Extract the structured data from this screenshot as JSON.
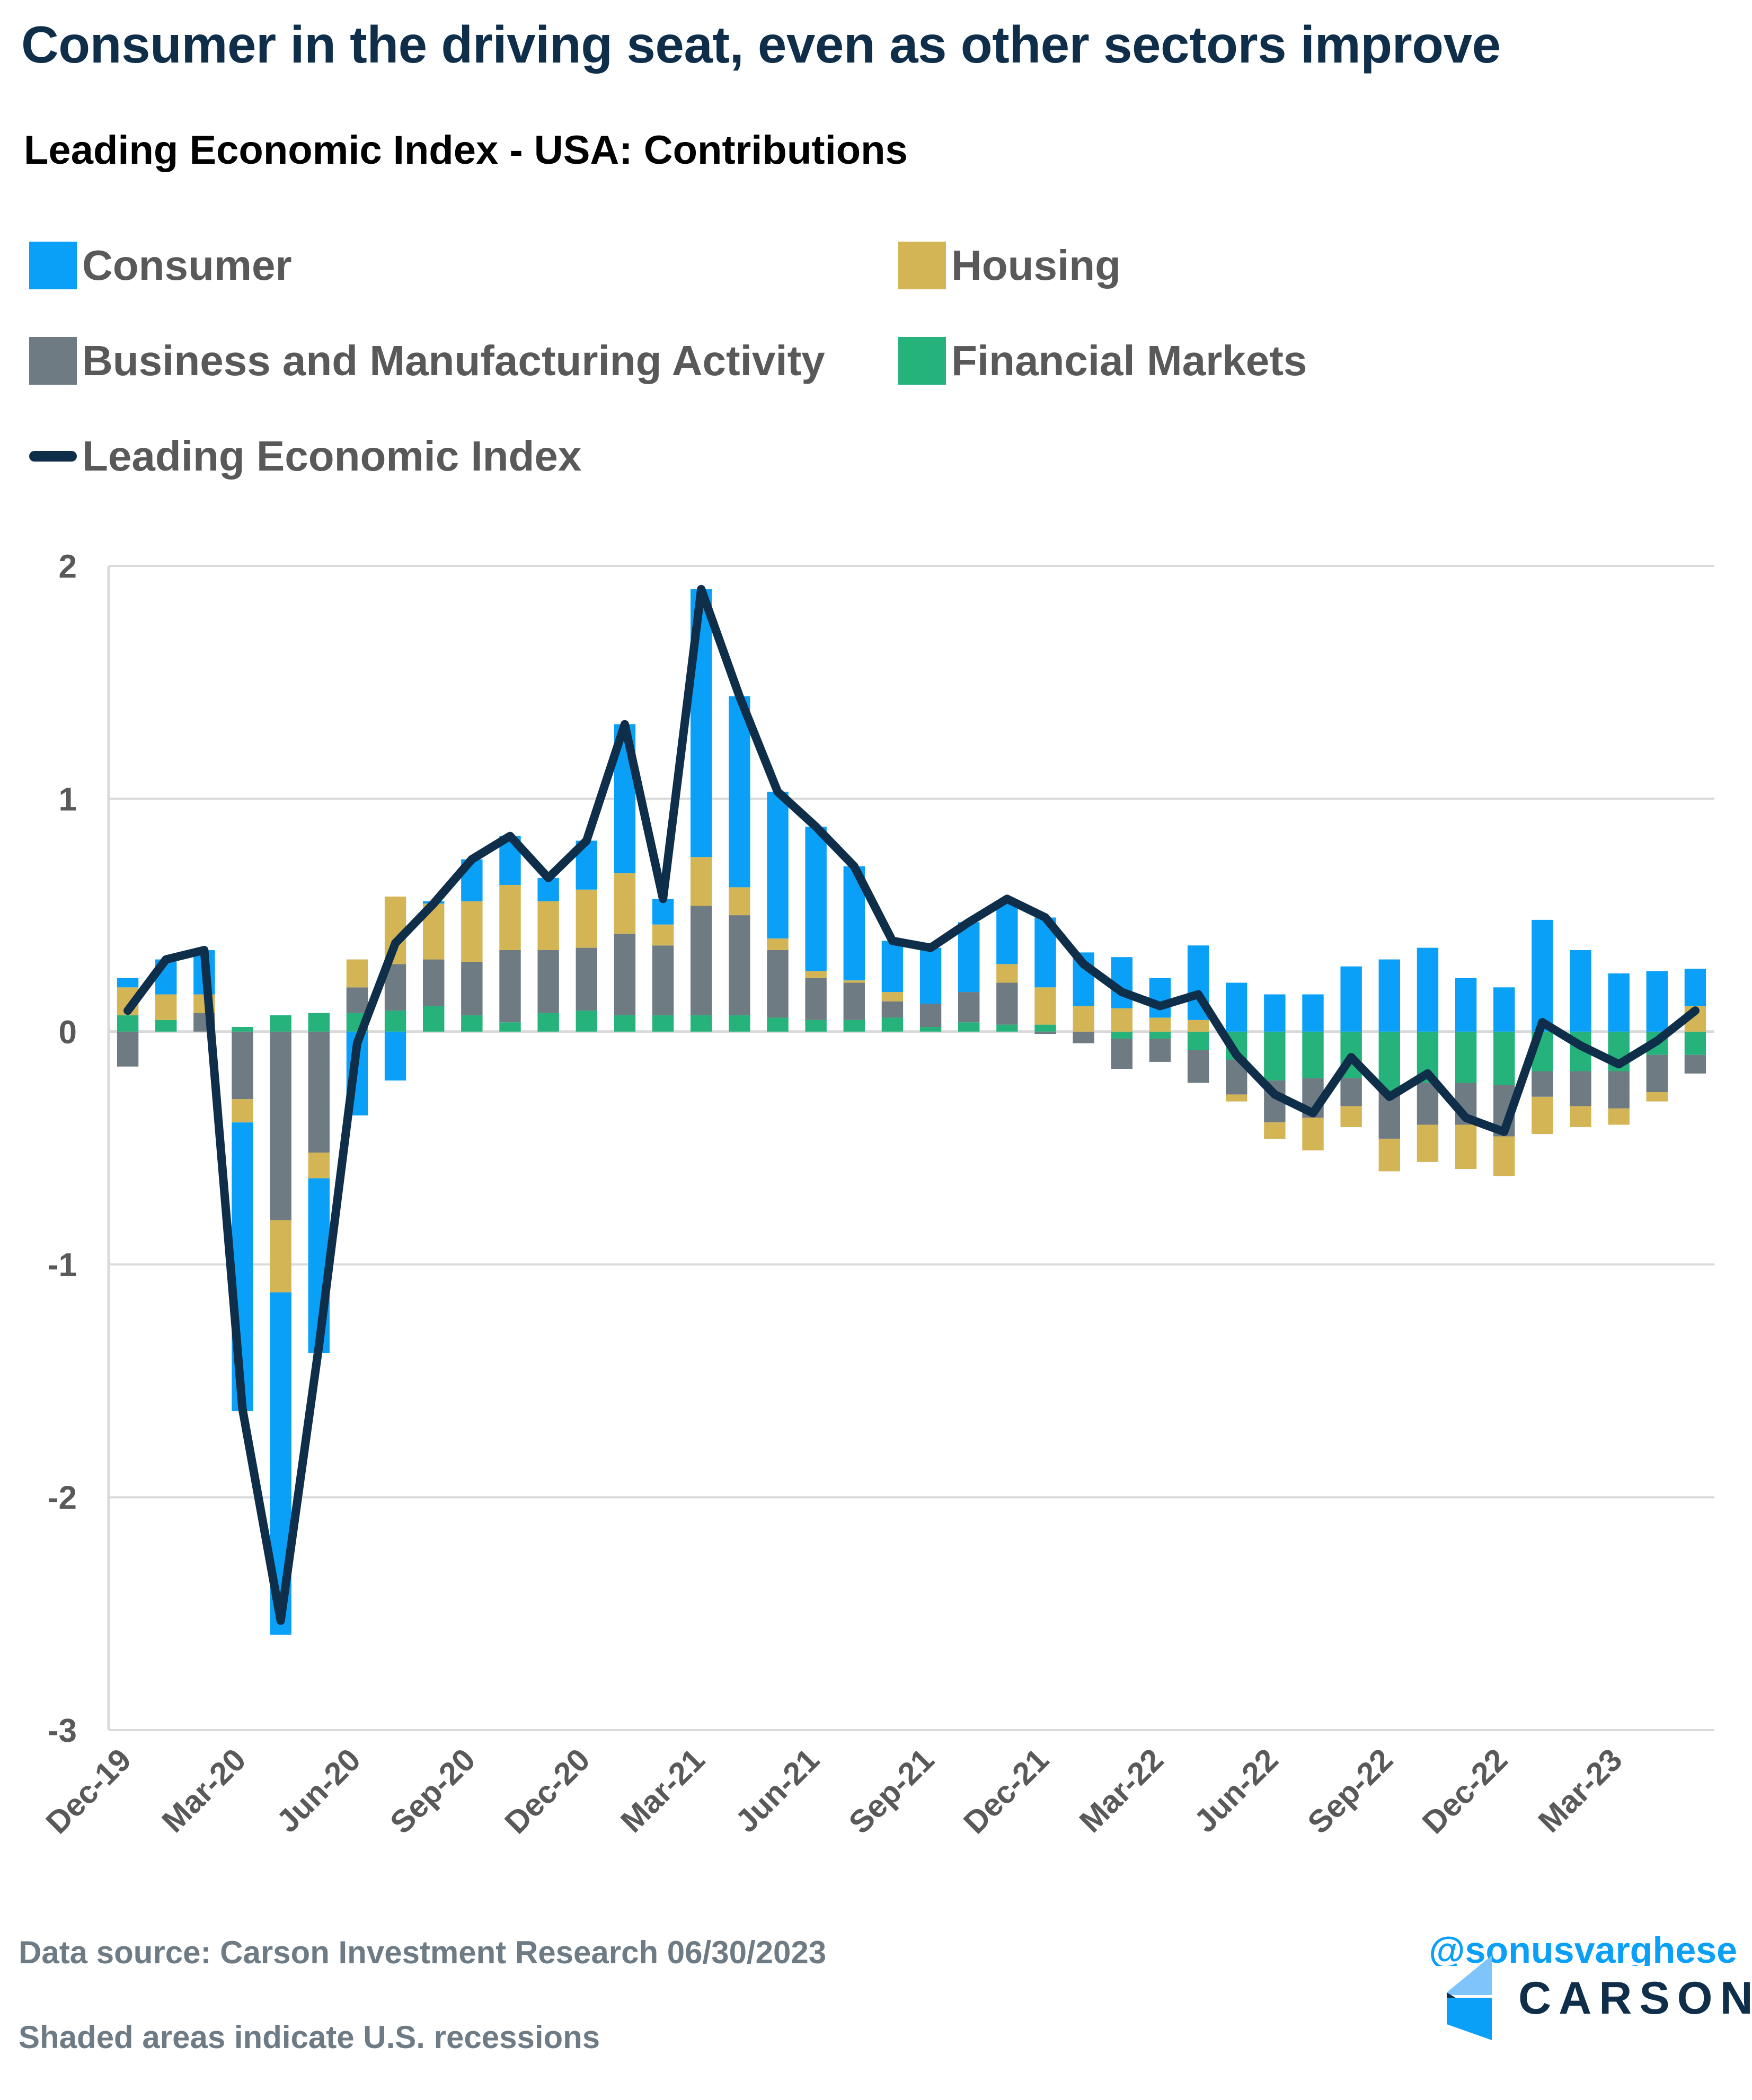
{
  "header": {
    "title": "Consumer in the driving seat, even as other sectors improve",
    "subtitle": "Leading Economic Index - USA: Contributions"
  },
  "legend": [
    {
      "label": "Consumer",
      "color": "#0aa0f8",
      "type": "bar"
    },
    {
      "label": "Housing",
      "color": "#d4b556",
      "type": "bar"
    },
    {
      "label": "Business and Manufacturing Activity",
      "color": "#6e7b82",
      "type": "bar"
    },
    {
      "label": "Financial Markets",
      "color": "#25b27b",
      "type": "bar"
    },
    {
      "label": "Leading Economic Index",
      "color": "#0e2e4a",
      "type": "line"
    }
  ],
  "footer": {
    "source": "Data source: Carson Investment Research   06/30/2023",
    "note": "Shaded areas indicate U.S. recessions",
    "handle": "@sonusvarghese",
    "logo_text": "CARSON"
  },
  "chart_data": {
    "type": "bar",
    "stacked": true,
    "title": "Leading Economic Index - USA: Contributions",
    "xlabel": "",
    "ylabel": "",
    "ylim": [
      -3,
      2
    ],
    "yticks": [
      2,
      1,
      0,
      -1,
      -2,
      -3
    ],
    "grid": true,
    "legend_position": "top",
    "categories": [
      "Dec-19",
      "Jan-20",
      "Feb-20",
      "Mar-20",
      "Apr-20",
      "May-20",
      "Jun-20",
      "Jul-20",
      "Aug-20",
      "Sep-20",
      "Oct-20",
      "Nov-20",
      "Dec-20",
      "Jan-21",
      "Feb-21",
      "Mar-21",
      "Apr-21",
      "May-21",
      "Jun-21",
      "Jul-21",
      "Aug-21",
      "Sep-21",
      "Oct-21",
      "Nov-21",
      "Dec-21",
      "Jan-22",
      "Feb-22",
      "Mar-22",
      "Apr-22",
      "May-22",
      "Jun-22",
      "Jul-22",
      "Aug-22",
      "Sep-22",
      "Oct-22",
      "Nov-22",
      "Dec-22",
      "Jan-23",
      "Feb-23",
      "Mar-23",
      "Apr-23",
      "May-23"
    ],
    "tick_labels": [
      "Dec-19",
      "Mar-20",
      "Jun-20",
      "Sep-20",
      "Dec-20",
      "Mar-21",
      "Jun-21",
      "Sep-21",
      "Dec-21",
      "Mar-22",
      "Jun-22",
      "Sep-22",
      "Dec-22",
      "Mar-23"
    ],
    "series": [
      {
        "name": "Financial Markets",
        "type": "bar",
        "color": "#25b27b",
        "values": [
          0.07,
          0.05,
          0.0,
          0.02,
          0.07,
          0.08,
          0.08,
          0.09,
          0.11,
          0.07,
          0.04,
          0.08,
          0.09,
          0.07,
          0.07,
          0.07,
          0.07,
          0.06,
          0.05,
          0.05,
          0.06,
          0.02,
          0.04,
          0.03,
          0.03,
          0.0,
          -0.03,
          -0.03,
          -0.08,
          -0.12,
          -0.21,
          -0.2,
          -0.2,
          -0.26,
          -0.22,
          -0.22,
          -0.23,
          -0.17,
          -0.17,
          -0.17,
          -0.1,
          -0.1
        ]
      },
      {
        "name": "Business and Manufacturing Activity",
        "type": "bar",
        "color": "#6e7b82",
        "values": [
          -0.15,
          0.0,
          0.08,
          -0.29,
          -0.81,
          -0.52,
          0.11,
          0.2,
          0.2,
          0.23,
          0.31,
          0.27,
          0.27,
          0.35,
          0.3,
          0.47,
          0.43,
          0.29,
          0.18,
          0.16,
          0.07,
          0.1,
          0.13,
          0.18,
          -0.01,
          -0.05,
          -0.13,
          -0.1,
          -0.14,
          -0.15,
          -0.18,
          -0.17,
          -0.12,
          -0.2,
          -0.18,
          -0.18,
          -0.22,
          -0.11,
          -0.15,
          -0.16,
          -0.16,
          -0.08
        ]
      },
      {
        "name": "Housing",
        "type": "bar",
        "color": "#d4b556",
        "values": [
          0.12,
          0.11,
          0.08,
          -0.1,
          -0.31,
          -0.11,
          0.12,
          0.29,
          0.24,
          0.26,
          0.28,
          0.21,
          0.25,
          0.26,
          0.09,
          0.21,
          0.12,
          0.05,
          0.03,
          0.01,
          0.04,
          0.0,
          0.0,
          0.08,
          0.16,
          0.11,
          0.1,
          0.06,
          0.05,
          -0.03,
          -0.07,
          -0.14,
          -0.09,
          -0.14,
          -0.16,
          -0.19,
          -0.17,
          -0.16,
          -0.09,
          -0.07,
          -0.04,
          0.11
        ]
      },
      {
        "name": "Consumer",
        "type": "bar",
        "color": "#0aa0f8",
        "values": [
          0.04,
          0.15,
          0.19,
          -1.24,
          -1.47,
          -0.75,
          -0.36,
          -0.21,
          0.01,
          0.18,
          0.21,
          0.1,
          0.21,
          0.64,
          0.11,
          1.15,
          0.82,
          0.63,
          0.62,
          0.49,
          0.22,
          0.24,
          0.3,
          0.27,
          0.3,
          0.23,
          0.22,
          0.17,
          0.32,
          0.21,
          0.16,
          0.16,
          0.28,
          0.31,
          0.36,
          0.23,
          0.19,
          0.48,
          0.35,
          0.25,
          0.26,
          0.16
        ]
      },
      {
        "name": "Leading Economic Index",
        "type": "line",
        "color": "#0e2e4a",
        "values": [
          0.09,
          0.31,
          0.35,
          -1.62,
          -2.53,
          -1.35,
          -0.05,
          0.38,
          0.55,
          0.74,
          0.84,
          0.66,
          0.82,
          1.32,
          0.57,
          1.9,
          1.44,
          1.03,
          0.88,
          0.71,
          0.39,
          0.36,
          0.47,
          0.57,
          0.49,
          0.29,
          0.17,
          0.11,
          0.16,
          -0.1,
          -0.27,
          -0.35,
          -0.11,
          -0.28,
          -0.18,
          -0.37,
          -0.43,
          0.04,
          -0.06,
          -0.14,
          -0.04,
          0.09
        ]
      }
    ]
  }
}
